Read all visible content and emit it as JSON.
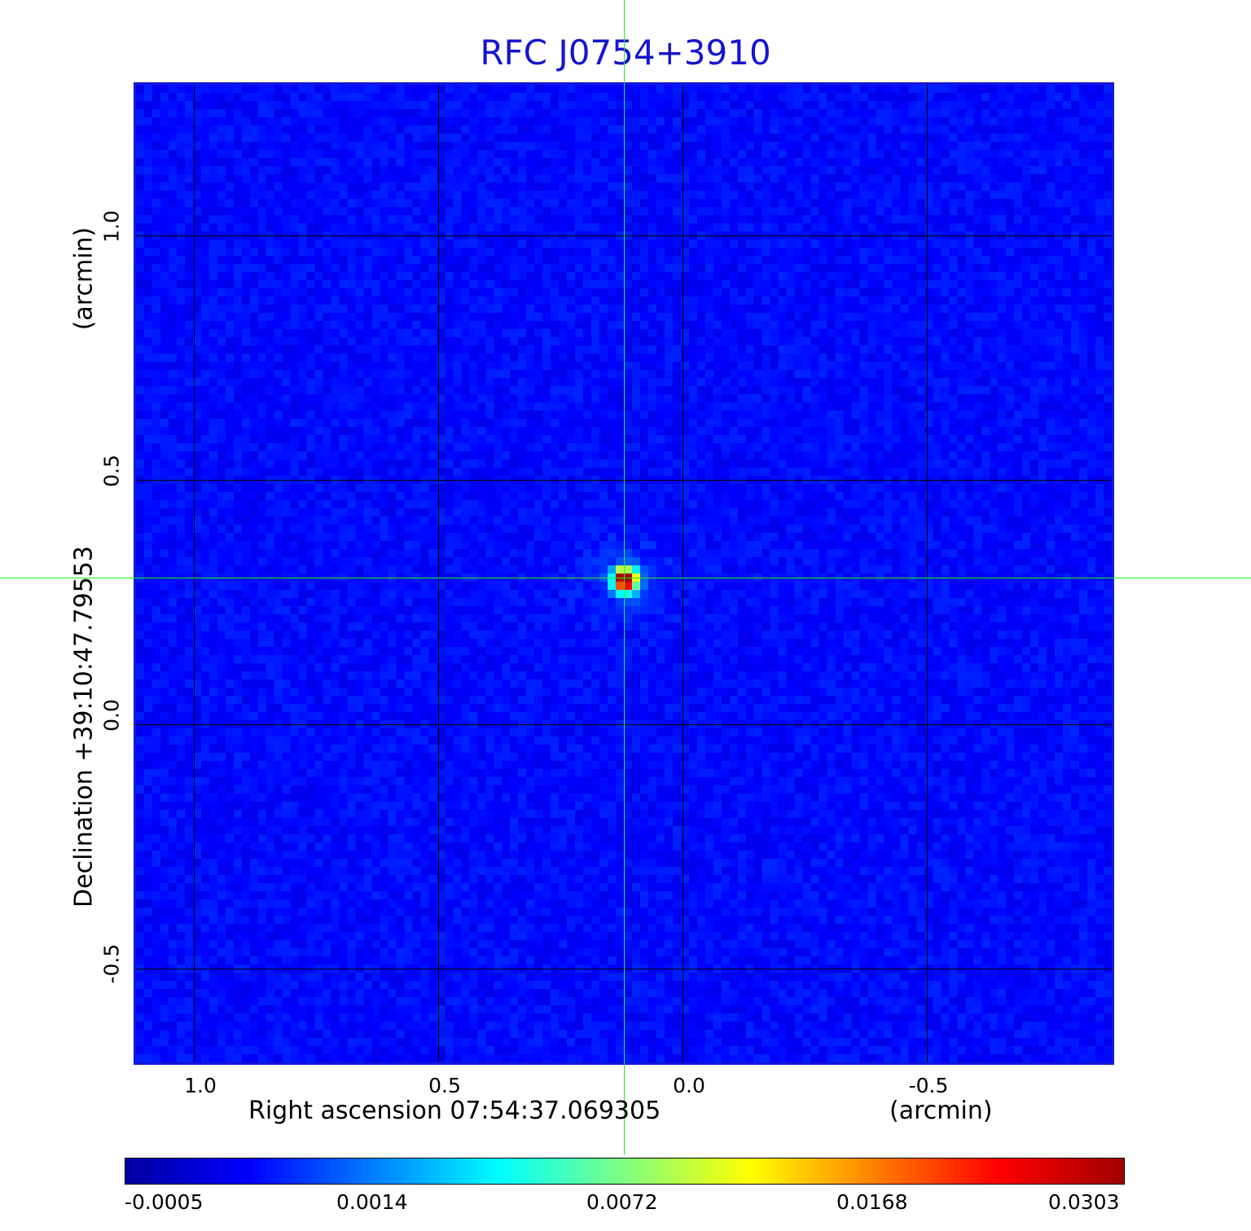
{
  "title": "RFC J0754+3910",
  "xaxis": {
    "label": "Right ascension  07:54:37.069305",
    "unit": "(arcmin)",
    "ticks": [
      "1.0",
      "0.5",
      "0.0",
      "-0.5"
    ]
  },
  "yaxis": {
    "label": "Declination  +39:10:47.79553",
    "unit": "(arcmin)",
    "ticks": [
      "1.0",
      "0.5",
      "0.0",
      "-0.5"
    ]
  },
  "colorbar": {
    "labels": [
      "-0.0005",
      "0.0014",
      "0.0072",
      "0.0168",
      "0.0303"
    ],
    "colors": [
      "#0000a0",
      "#0000ff",
      "#0080ff",
      "#00ffff",
      "#80ff80",
      "#ffff00",
      "#ff8000",
      "#ff0000",
      "#a00000"
    ]
  },
  "image": {
    "background_color": "#1f4ff0",
    "crosshair_color": "#22ee22",
    "grid_color": "#000000",
    "source_peak_color": "#a00000"
  }
}
